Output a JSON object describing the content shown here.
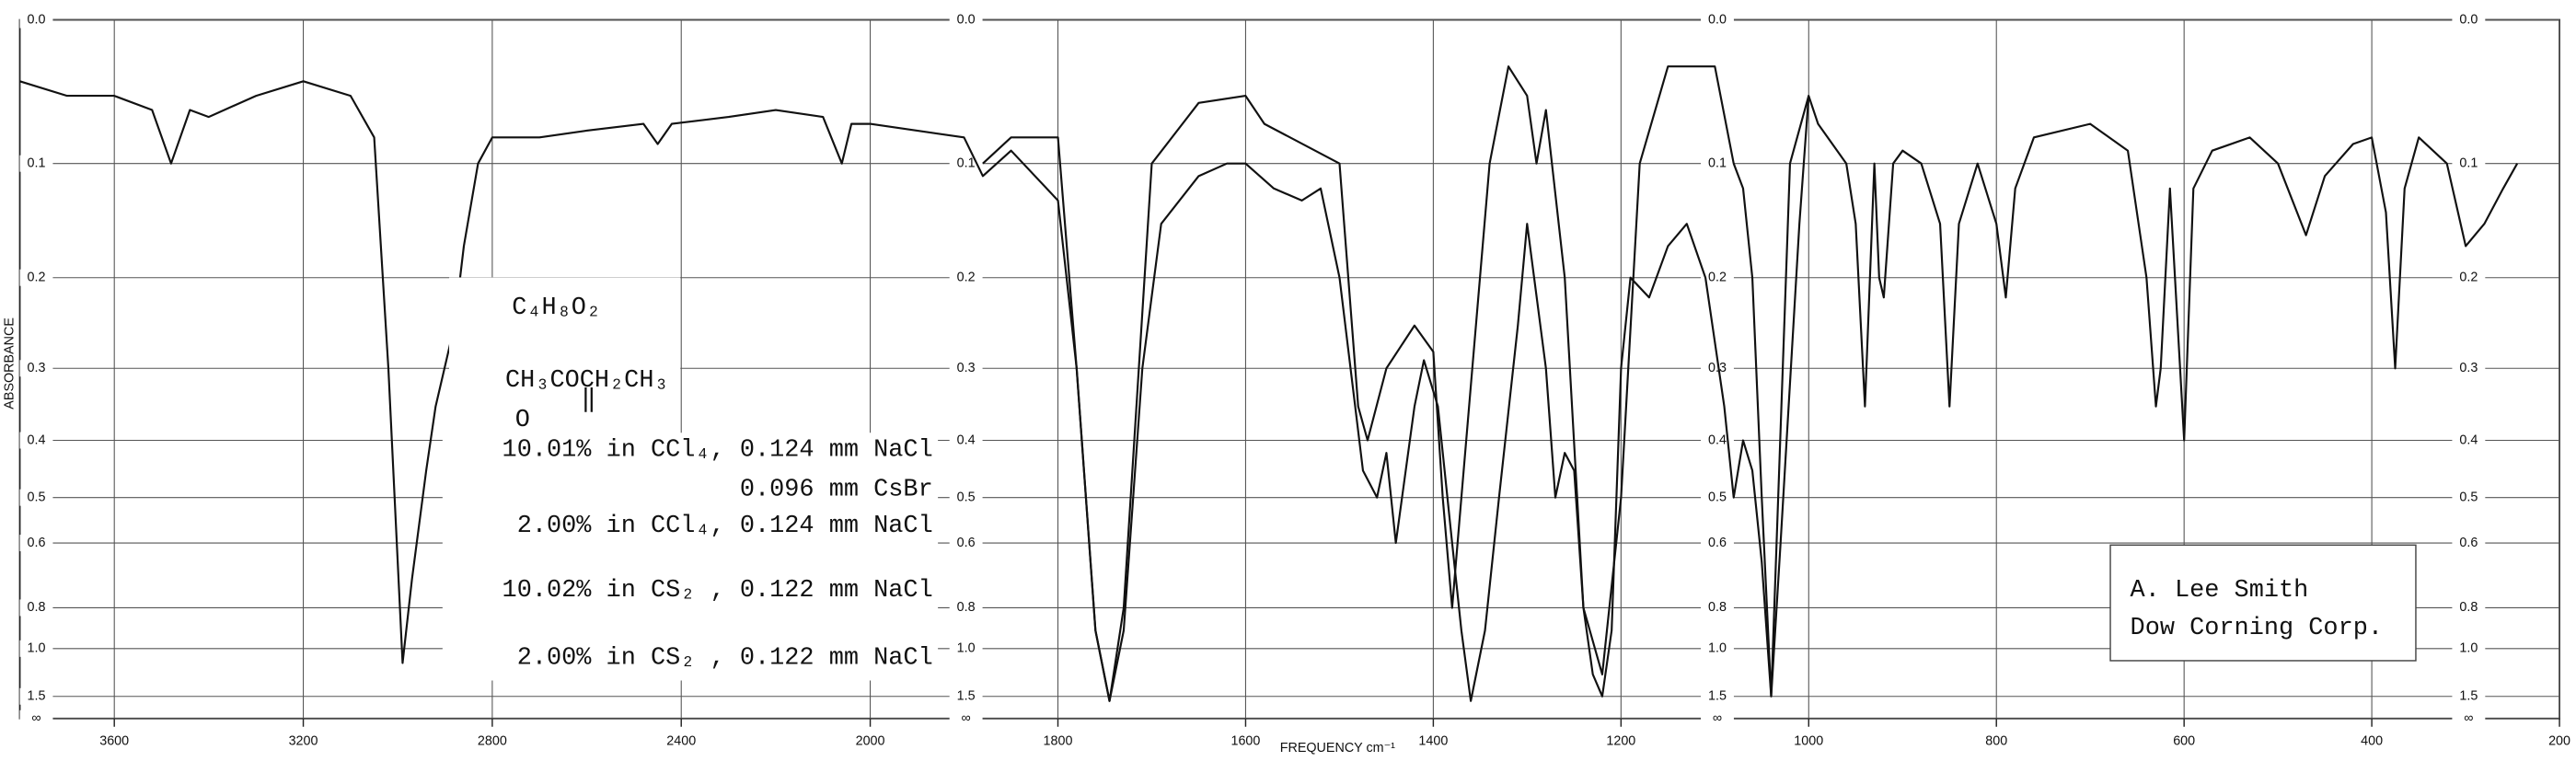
{
  "chart_data": {
    "type": "line",
    "x_label": "FREQUENCY cm⁻¹",
    "y_label": "ABSORBANCE",
    "xlim": [
      3800,
      200
    ],
    "x_scale_break": 2000,
    "xticks": [
      3600,
      3200,
      2800,
      2400,
      2000,
      1800,
      1600,
      1400,
      1200,
      1000,
      800,
      600,
      400,
      200
    ],
    "ylim": [
      0,
      null
    ],
    "y_scale": "absorbance",
    "yticks": [
      {
        "value": 0,
        "label": "0.0"
      },
      0.1,
      0.2,
      0.3,
      0.4,
      0.5,
      0.6,
      0.8,
      {
        "value": 1,
        "label": "1.0"
      },
      1.5,
      {
        "value": null,
        "label": "∞"
      }
    ],
    "grid": true,
    "series": [
      {
        "color": "#111",
        "x": [
          3800,
          3700,
          3600,
          3520,
          3480,
          3440,
          3400,
          3300,
          3200,
          3100,
          3050,
          3020,
          2990,
          2970,
          2940,
          2920,
          2880,
          2860,
          2830,
          2800,
          2700,
          2600,
          2480,
          2450,
          2420,
          2300,
          2200,
          2100,
          2060,
          2040,
          2000,
          1900,
          1880,
          1850,
          1800,
          1780,
          1760,
          1745,
          1730,
          1710,
          1690,
          1650,
          1620,
          1600,
          1570,
          1540,
          1520,
          1500,
          1475,
          1460,
          1450,
          1440,
          1420,
          1410,
          1395,
          1380,
          1370,
          1360,
          1345,
          1330,
          1310,
          1300,
          1280,
          1270,
          1260,
          1250,
          1240,
          1230,
          1220,
          1210,
          1200,
          1190,
          1170,
          1150,
          1130,
          1110,
          1090,
          1080,
          1070,
          1060,
          1050,
          1040,
          1030,
          1010,
          1000,
          990,
          960,
          950,
          940,
          930,
          925,
          920,
          910,
          900,
          880,
          860,
          850,
          840,
          820,
          800,
          790,
          780,
          760,
          700,
          660,
          640,
          630,
          625,
          615,
          600,
          590,
          570,
          530,
          500,
          470,
          450,
          420,
          400,
          385,
          375,
          365,
          350,
          320,
          300,
          280,
          260,
          245
        ],
        "values": [
          0.04,
          0.05,
          0.05,
          0.06,
          0.1,
          0.06,
          0.065,
          0.05,
          0.04,
          0.05,
          0.08,
          0.3,
          1.1,
          0.7,
          0.45,
          0.35,
          0.25,
          0.17,
          0.1,
          0.08,
          0.08,
          0.075,
          0.07,
          0.085,
          0.07,
          0.065,
          0.06,
          0.065,
          0.1,
          0.07,
          0.07,
          0.08,
          0.11,
          0.09,
          0.13,
          0.3,
          0.9,
          1.6,
          0.9,
          0.3,
          0.15,
          0.11,
          0.1,
          0.1,
          0.12,
          0.13,
          0.12,
          0.2,
          0.45,
          0.5,
          0.42,
          0.6,
          0.35,
          0.29,
          0.35,
          0.6,
          0.9,
          1.6,
          0.9,
          0.5,
          0.25,
          0.15,
          0.3,
          0.5,
          0.42,
          0.45,
          0.8,
          1.2,
          1.5,
          0.9,
          0.3,
          0.2,
          0.22,
          0.17,
          0.15,
          0.2,
          0.35,
          0.5,
          0.4,
          0.45,
          0.65,
          1.5,
          0.6,
          0.15,
          0.05,
          0.07,
          0.1,
          0.15,
          0.35,
          0.1,
          0.2,
          0.22,
          0.1,
          0.09,
          0.1,
          0.15,
          0.35,
          0.15,
          0.1,
          0.15,
          0.22,
          0.12,
          0.08,
          0.07,
          0.09,
          0.2,
          0.35,
          0.3,
          0.12,
          0.4,
          0.12,
          0.09,
          0.08,
          0.1,
          0.16,
          0.11,
          0.085,
          0.08,
          0.14,
          0.3,
          0.12,
          0.08,
          0.1,
          0.17,
          0.15,
          0.12,
          0.1
        ]
      },
      {
        "color": "#111",
        "x": [
          1880,
          1850,
          1800,
          1780,
          1760,
          1745,
          1730,
          1700,
          1650,
          1600,
          1580,
          1500,
          1480,
          1470,
          1450,
          1420,
          1400,
          1390,
          1380,
          1370,
          1340,
          1320,
          1300,
          1290,
          1280,
          1260,
          1240,
          1220,
          1200,
          1180,
          1150,
          1100,
          1080,
          1070,
          1060,
          1050,
          1040,
          1020,
          1000
        ],
        "values": [
          0.1,
          0.08,
          0.08,
          0.3,
          0.9,
          1.6,
          0.8,
          0.1,
          0.055,
          0.05,
          0.07,
          0.1,
          0.35,
          0.4,
          0.3,
          0.25,
          0.28,
          0.5,
          0.8,
          0.5,
          0.1,
          0.03,
          0.05,
          0.1,
          0.06,
          0.2,
          0.8,
          1.2,
          0.5,
          0.1,
          0.03,
          0.03,
          0.1,
          0.12,
          0.2,
          0.5,
          1.5,
          0.1,
          0.05
        ]
      }
    ],
    "annotations": {
      "formula": "C₄H₈O₂",
      "structure": "CH₃COCH₂CH₃",
      "structure_oxygen": "O",
      "samples": [
        "10.01% in CCl₄, 0.124 mm NaCl",
        "0.096 mm CsBr",
        "2.00% in CCl₄, 0.124 mm NaCl",
        "10.02% in CS₂ , 0.122 mm NaCl",
        "2.00% in CS₂ , 0.122 mm NaCl"
      ],
      "author": [
        "A. Lee Smith",
        "Dow Corning Corp."
      ]
    }
  }
}
